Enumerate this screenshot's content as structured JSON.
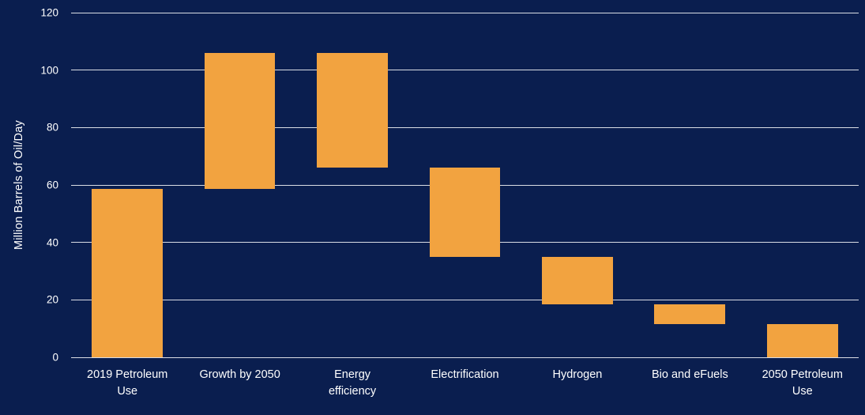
{
  "chart_data": {
    "type": "bar",
    "subtype": "waterfall",
    "title": "",
    "xlabel": "",
    "ylabel": "Million Barrels of Oil/Day",
    "ylim": [
      0,
      120
    ],
    "yticks": [
      0,
      20,
      40,
      60,
      80,
      100,
      120
    ],
    "grid": true,
    "legend": false,
    "categories": [
      "2019 Petroleum\nUse",
      "Growth by 2050",
      "Energy\nefficiency",
      "Electrification",
      "Hydrogen",
      "Bio and eFuels",
      "2050 Petroleum\nUse"
    ],
    "bars": [
      {
        "label": "2019 Petroleum\nUse",
        "start": 0,
        "end": 58.5
      },
      {
        "label": "Growth by 2050",
        "start": 58.5,
        "end": 106
      },
      {
        "label": "Energy\nefficiency",
        "start": 66,
        "end": 106
      },
      {
        "label": "Electrification",
        "start": 35,
        "end": 66
      },
      {
        "label": "Hydrogen",
        "start": 18.5,
        "end": 35
      },
      {
        "label": "Bio and eFuels",
        "start": 11.5,
        "end": 18.5
      },
      {
        "label": "2050 Petroleum\nUse",
        "start": 0,
        "end": 11.5
      }
    ],
    "colors": {
      "background": "#0A1E4F",
      "bar": "#F2A340",
      "grid": "#FFFFFF",
      "text": "#FFFFFF"
    }
  }
}
